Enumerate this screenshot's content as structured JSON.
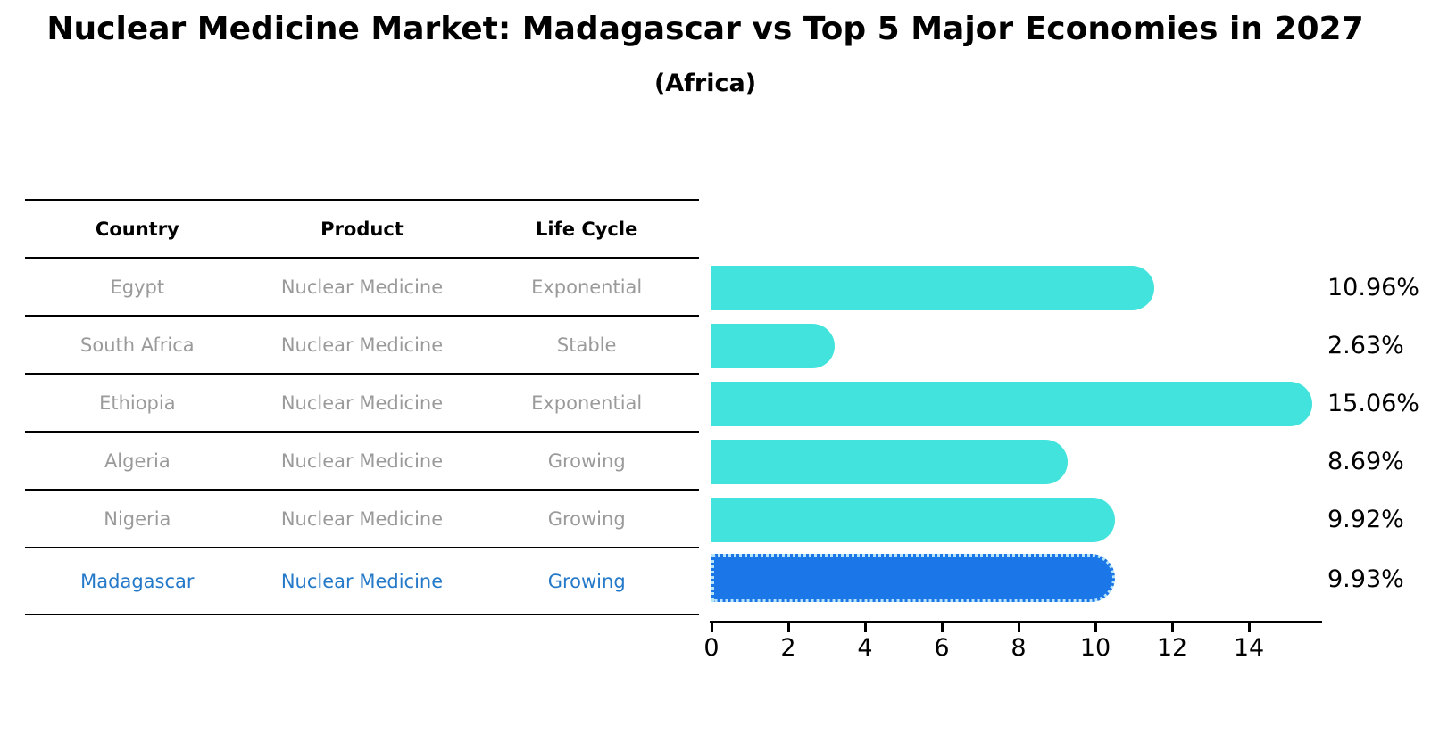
{
  "title": "Nuclear Medicine Market: Madagascar vs Top 5 Major Economies in 2027",
  "subtitle": "(Africa)",
  "table": {
    "headers": [
      "Country",
      "Product",
      "Life Cycle"
    ],
    "rows": [
      {
        "country": "Egypt",
        "product": "Nuclear Medicine",
        "life_cycle": "Exponential",
        "highlighted": false
      },
      {
        "country": "South Africa",
        "product": "Nuclear Medicine",
        "life_cycle": "Stable",
        "highlighted": false
      },
      {
        "country": "Ethiopia",
        "product": "Nuclear Medicine",
        "life_cycle": "Exponential",
        "highlighted": false
      },
      {
        "country": "Algeria",
        "product": "Nuclear Medicine",
        "life_cycle": "Growing",
        "highlighted": false
      },
      {
        "country": "Nigeria",
        "product": "Nuclear Medicine",
        "life_cycle": "Growing",
        "highlighted": false
      },
      {
        "country": "Madagascar",
        "product": "Nuclear Medicine",
        "life_cycle": "Growing",
        "highlighted": true
      }
    ]
  },
  "chart_data": {
    "type": "bar",
    "orientation": "horizontal",
    "title": "Nuclear Medicine Market: Madagascar vs Top 5 Major Economies in 2027",
    "subtitle": "(Africa)",
    "categories": [
      "Egypt",
      "South Africa",
      "Ethiopia",
      "Algeria",
      "Nigeria",
      "Madagascar"
    ],
    "values": [
      10.96,
      2.63,
      15.06,
      8.69,
      9.92,
      9.93
    ],
    "value_labels": [
      "10.96%",
      "2.63%",
      "15.06%",
      "8.69%",
      "9.92%",
      "9.93%"
    ],
    "xticks": [
      0,
      2,
      4,
      6,
      8,
      10,
      12,
      14
    ],
    "xlim": [
      0,
      15.9
    ],
    "xlabel": "",
    "ylabel": "",
    "grid": false,
    "legend": false,
    "highlight_index": 5,
    "colors": {
      "bar": "#42e3dc",
      "highlight_bar": "#1b76e8",
      "highlight_bar_border": "#b8e4fa",
      "row_text": "#9a9a9a",
      "highlight_text": "#2579c9",
      "axis": "#000000"
    }
  }
}
